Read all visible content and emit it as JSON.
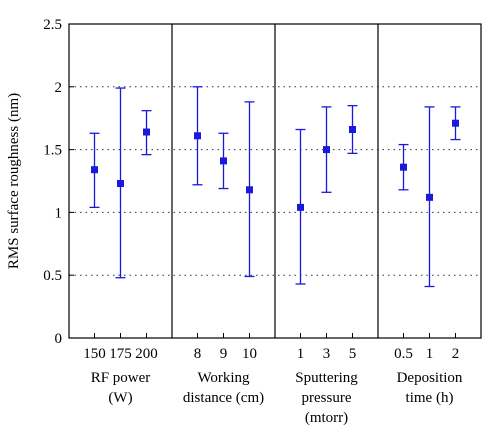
{
  "chart_data": {
    "type": "scatter",
    "ylabel": "RMS surface roughness (nm)",
    "ylim": [
      0,
      2.5
    ],
    "yticks": [
      "0",
      "0.5",
      "1",
      "1.5",
      "2",
      "2.5"
    ],
    "grid": "horizontal dotted",
    "marker_color": "#1a1adb",
    "groups": [
      {
        "label_lines": [
          "RF power",
          "(W)"
        ],
        "points": [
          {
            "x": "150",
            "y": 1.34,
            "low": 1.04,
            "high": 1.63
          },
          {
            "x": "175",
            "y": 1.23,
            "low": 0.48,
            "high": 1.99
          },
          {
            "x": "200",
            "y": 1.64,
            "low": 1.46,
            "high": 1.81
          }
        ]
      },
      {
        "label_lines": [
          "Working",
          "distance (cm)"
        ],
        "points": [
          {
            "x": "8",
            "y": 1.61,
            "low": 1.22,
            "high": 2.0
          },
          {
            "x": "9",
            "y": 1.41,
            "low": 1.19,
            "high": 1.63
          },
          {
            "x": "10",
            "y": 1.18,
            "low": 0.49,
            "high": 1.88
          }
        ]
      },
      {
        "label_lines": [
          "Sputtering",
          "pressure",
          "(mtorr)"
        ],
        "points": [
          {
            "x": "1",
            "y": 1.04,
            "low": 0.43,
            "high": 1.66
          },
          {
            "x": "3",
            "y": 1.5,
            "low": 1.16,
            "high": 1.84
          },
          {
            "x": "5",
            "y": 1.66,
            "low": 1.47,
            "high": 1.85
          }
        ]
      },
      {
        "label_lines": [
          "Deposition",
          "time (h)"
        ],
        "points": [
          {
            "x": "0.5",
            "y": 1.36,
            "low": 1.18,
            "high": 1.54
          },
          {
            "x": "1",
            "y": 1.12,
            "low": 0.41,
            "high": 1.84
          },
          {
            "x": "2",
            "y": 1.71,
            "low": 1.58,
            "high": 1.84
          }
        ]
      }
    ]
  }
}
